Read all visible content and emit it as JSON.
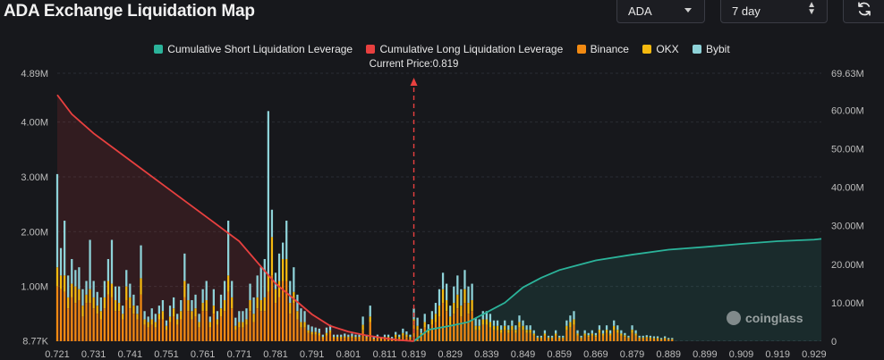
{
  "header": {
    "title": "ADA Exchange Liquidation Map",
    "coin_select": "ADA",
    "range_select": "7 day",
    "refresh_icon": "refresh-icon"
  },
  "current_price_label": "Current Price:0.819",
  "watermark": "coinglass",
  "colors": {
    "background": "#17181c",
    "short_line": "#2bb39a",
    "long_line": "#e8403f",
    "binance": "#f28a12",
    "okx": "#f5b90f",
    "bybit": "#8ed2d8",
    "grid": "#2a2c33"
  },
  "chart_data": {
    "type": "bar",
    "title": "ADA Exchange Liquidation Map",
    "current_price": 0.819,
    "legend": [
      {
        "name": "Cumulative Short Liquidation Leverage",
        "color": "#2bb39a"
      },
      {
        "name": "Cumulative Long Liquidation Leverage",
        "color": "#e8403f"
      },
      {
        "name": "Binance",
        "color": "#f28a12"
      },
      {
        "name": "OKX",
        "color": "#f5b90f"
      },
      {
        "name": "Bybit",
        "color": "#8ed2d8"
      }
    ],
    "x_start": 0.721,
    "x_step": 0.001,
    "x_tick_labels": [
      "0.721",
      "0.731",
      "0.741",
      "0.751",
      "0.761",
      "0.771",
      "0.781",
      "0.791",
      "0.801",
      "0.811",
      "0.819",
      "0.829",
      "0.839",
      "0.849",
      "0.859",
      "0.869",
      "0.879",
      "0.889",
      "0.899",
      "0.909",
      "0.919",
      "0.929"
    ],
    "y_left_tick_labels": [
      "8.77K",
      "1.00M",
      "2.00M",
      "3.00M",
      "4.00M",
      "4.89M"
    ],
    "y_left_ticks": [
      0.00877,
      1,
      2,
      3,
      4,
      4.89
    ],
    "y_left_range": [
      0,
      4.89
    ],
    "y_right_tick_labels": [
      "0",
      "10.00M",
      "20.00M",
      "30.00M",
      "40.00M",
      "50.00M",
      "60.00M",
      "69.63M"
    ],
    "y_right_ticks": [
      0,
      10,
      20,
      30,
      40,
      50,
      60,
      69.63
    ],
    "y_right_range": [
      0,
      69.63
    ],
    "units": "millions",
    "bars": {
      "binance": [
        1.0,
        0.95,
        0.9,
        0.6,
        0.8,
        0.7,
        0.75,
        0.45,
        0.7,
        0.7,
        0.6,
        0.5,
        0.4,
        0.6,
        0.85,
        0.8,
        0.55,
        0.55,
        0.4,
        0.75,
        0.6,
        0.5,
        0.4,
        0.85,
        0.3,
        0.25,
        0.3,
        0.25,
        0.4,
        0.4,
        0.2,
        0.35,
        0.45,
        0.3,
        0.4,
        0.8,
        0.55,
        0.4,
        0.45,
        0.25,
        0.55,
        0.55,
        0.25,
        0.5,
        0.3,
        0.45,
        0.55,
        0.9,
        0.6,
        0.2,
        0.25,
        0.25,
        0.3,
        0.55,
        0.35,
        0.6,
        0.55,
        0.55,
        0.9,
        1.2,
        0.7,
        0.8,
        1.1,
        1.1,
        0.5,
        0.7,
        0.4,
        0.25,
        0.25,
        0.15,
        0.12,
        0.12,
        0.1,
        0.05,
        0.1,
        0.15,
        0.05,
        0.05,
        0.05,
        0.06,
        0.05,
        0.06,
        0.05,
        0.05,
        0.2,
        0.05,
        0.35,
        0.03,
        0.05,
        0.03,
        0.05,
        0.05,
        0.03,
        0.08,
        0.05,
        0.1,
        0.08,
        0.05,
        0.3,
        0.2,
        0.1,
        0.25,
        0.15,
        0.3,
        0.35,
        0.45,
        0.7,
        0.55,
        0.3,
        0.5,
        0.6,
        0.45,
        0.7,
        0.5,
        0.55,
        0.2,
        0.2,
        0.3,
        0.3,
        0.25,
        0.2,
        0.2,
        0.15,
        0.2,
        0.15,
        0.2,
        0.15,
        0.25,
        0.2,
        0.15,
        0.15,
        0.1,
        0.05,
        0.05,
        0.1,
        0.05,
        0.05,
        0.1,
        0.05,
        0.05,
        0.2,
        0.25,
        0.3,
        0.1,
        0.05,
        0.1,
        0.08,
        0.1,
        0.08,
        0.15,
        0.1,
        0.15,
        0.1,
        0.2,
        0.15,
        0.1,
        0.08,
        0.05,
        0.15,
        0.1,
        0.05,
        0.05,
        0.06,
        0.05,
        0.04,
        0.04,
        0.03,
        0.04,
        0.03,
        0.03
      ],
      "okx": [
        0.35,
        0.25,
        0.3,
        0.2,
        0.25,
        0.3,
        0.2,
        0.2,
        0.15,
        0.25,
        0.2,
        0.15,
        0.15,
        0.2,
        0.25,
        0.25,
        0.2,
        0.15,
        0.1,
        0.25,
        0.2,
        0.15,
        0.1,
        0.3,
        0.1,
        0.1,
        0.1,
        0.1,
        0.1,
        0.15,
        0.08,
        0.1,
        0.15,
        0.1,
        0.15,
        0.3,
        0.2,
        0.15,
        0.15,
        0.1,
        0.15,
        0.2,
        0.1,
        0.15,
        0.1,
        0.15,
        0.2,
        0.3,
        0.2,
        0.08,
        0.1,
        0.1,
        0.1,
        0.2,
        0.15,
        0.2,
        0.2,
        0.25,
        0.3,
        0.7,
        0.25,
        0.3,
        0.4,
        0.4,
        0.2,
        0.2,
        0.15,
        0.1,
        0.1,
        0.05,
        0.05,
        0.05,
        0.05,
        0.03,
        0.05,
        0.05,
        0.03,
        0.03,
        0.03,
        0.03,
        0.03,
        0.03,
        0.03,
        0.03,
        0.1,
        0.03,
        0.1,
        0.02,
        0.03,
        0.02,
        0.03,
        0.03,
        0.02,
        0.04,
        0.03,
        0.05,
        0.04,
        0.03,
        0.1,
        0.08,
        0.05,
        0.1,
        0.06,
        0.1,
        0.15,
        0.2,
        0.25,
        0.2,
        0.15,
        0.2,
        0.25,
        0.2,
        0.25,
        0.2,
        0.2,
        0.08,
        0.08,
        0.1,
        0.1,
        0.1,
        0.08,
        0.08,
        0.06,
        0.08,
        0.06,
        0.08,
        0.06,
        0.1,
        0.08,
        0.06,
        0.06,
        0.04,
        0.02,
        0.02,
        0.04,
        0.02,
        0.02,
        0.04,
        0.02,
        0.02,
        0.08,
        0.1,
        0.1,
        0.04,
        0.02,
        0.04,
        0.03,
        0.04,
        0.03,
        0.06,
        0.04,
        0.06,
        0.04,
        0.08,
        0.06,
        0.04,
        0.03,
        0.02,
        0.06,
        0.04,
        0.02,
        0.02,
        0.02,
        0.02,
        0.02,
        0.02,
        0.01,
        0.02,
        0.01,
        0.01
      ],
      "bybit": [
        1.7,
        0.5,
        1.0,
        0.4,
        0.45,
        0.3,
        0.4,
        0.3,
        0.25,
        0.9,
        0.3,
        0.25,
        0.25,
        0.3,
        0.4,
        0.8,
        0.25,
        0.3,
        0.15,
        0.3,
        0.25,
        0.2,
        0.15,
        0.6,
        0.15,
        0.1,
        0.2,
        0.15,
        0.15,
        0.2,
        0.1,
        0.2,
        0.2,
        0.1,
        0.2,
        0.5,
        0.3,
        0.2,
        0.25,
        0.15,
        0.25,
        0.35,
        0.1,
        0.3,
        0.15,
        0.25,
        0.35,
        1.0,
        0.3,
        0.15,
        0.2,
        0.2,
        0.2,
        0.3,
        0.3,
        0.4,
        0.6,
        0.7,
        3.0,
        0.5,
        0.3,
        0.5,
        0.3,
        0.7,
        0.4,
        0.45,
        0.3,
        0.25,
        0.2,
        0.1,
        0.1,
        0.08,
        0.08,
        0.04,
        0.1,
        0.1,
        0.04,
        0.04,
        0.04,
        0.05,
        0.04,
        0.05,
        0.04,
        0.04,
        0.15,
        0.04,
        0.2,
        0.03,
        0.04,
        0.03,
        0.04,
        0.04,
        0.03,
        0.05,
        0.04,
        0.08,
        0.06,
        0.04,
        0.2,
        0.15,
        0.08,
        0.15,
        0.1,
        0.15,
        0.2,
        0.3,
        0.3,
        0.3,
        0.2,
        0.3,
        0.35,
        0.3,
        0.35,
        0.3,
        0.3,
        0.15,
        0.12,
        0.15,
        0.15,
        0.15,
        0.1,
        0.1,
        0.08,
        0.1,
        0.08,
        0.1,
        0.08,
        0.12,
        0.1,
        0.08,
        0.08,
        0.06,
        0.03,
        0.03,
        0.06,
        0.03,
        0.03,
        0.06,
        0.03,
        0.03,
        0.1,
        0.12,
        0.15,
        0.06,
        0.03,
        0.06,
        0.04,
        0.06,
        0.04,
        0.08,
        0.06,
        0.08,
        0.06,
        0.1,
        0.08,
        0.06,
        0.04,
        0.03,
        0.08,
        0.06,
        0.03,
        0.03,
        0.03,
        0.03,
        0.03,
        0.03,
        0.02,
        0.03,
        0.02,
        0.02
      ]
    },
    "cumulative_long": {
      "x": [
        0.721,
        0.725,
        0.731,
        0.741,
        0.751,
        0.761,
        0.771,
        0.781,
        0.786,
        0.791,
        0.796,
        0.801,
        0.806,
        0.811,
        0.815,
        0.819
      ],
      "y": [
        64,
        59,
        54,
        47,
        40,
        33,
        26,
        15,
        11,
        7,
        4,
        2.5,
        1.5,
        0.8,
        0.3,
        0
      ]
    },
    "cumulative_short": {
      "x": [
        0.819,
        0.823,
        0.829,
        0.834,
        0.839,
        0.844,
        0.849,
        0.854,
        0.859,
        0.869,
        0.879,
        0.889,
        0.899,
        0.909,
        0.919,
        0.929,
        0.931
      ],
      "y": [
        0,
        3,
        4,
        5,
        7.5,
        10,
        14,
        16.5,
        18.5,
        21,
        22.5,
        23.8,
        24.5,
        25.3,
        26,
        26.4,
        26.6
      ]
    }
  }
}
